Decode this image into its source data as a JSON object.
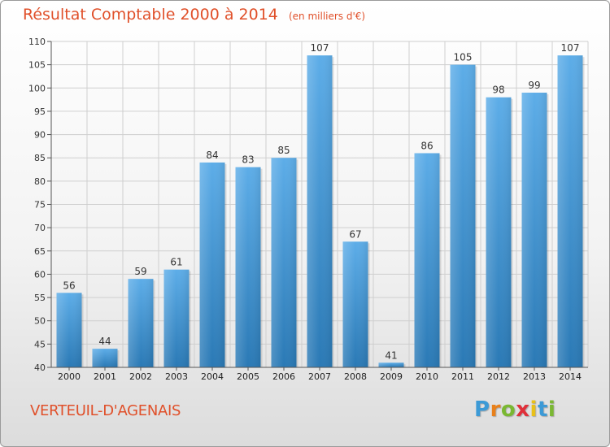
{
  "title": {
    "main": "Résultat Comptable 2000 à 2014",
    "unit": "(en milliers d'€)"
  },
  "place_name": "VERTEUIL-D'AGENAIS",
  "logo": {
    "letters": [
      "P",
      "r",
      "o",
      "x",
      "i",
      "t",
      "i"
    ],
    "colors": [
      "#3c9ad6",
      "#e8801a",
      "#7ab832",
      "#e0303a",
      "#e8c019",
      "#3c9ad6",
      "#7ab832"
    ]
  },
  "colors": {
    "bar_light": "#5dade8",
    "bar_dark": "#2a79b5",
    "grid": "#cfcfcf",
    "text_accent": "#e0502a"
  },
  "chart_data": {
    "type": "bar",
    "categories": [
      "2000",
      "2001",
      "2002",
      "2003",
      "2004",
      "2005",
      "2006",
      "2007",
      "2008",
      "2009",
      "2010",
      "2011",
      "2012",
      "2013",
      "2014"
    ],
    "values": [
      56,
      44,
      59,
      61,
      84,
      83,
      85,
      107,
      67,
      41,
      86,
      105,
      98,
      99,
      107
    ],
    "ylim": [
      40,
      110
    ],
    "yticks": [
      40,
      45,
      50,
      55,
      60,
      65,
      70,
      75,
      80,
      85,
      90,
      95,
      100,
      105,
      110
    ],
    "grid": true,
    "legend": "none"
  }
}
